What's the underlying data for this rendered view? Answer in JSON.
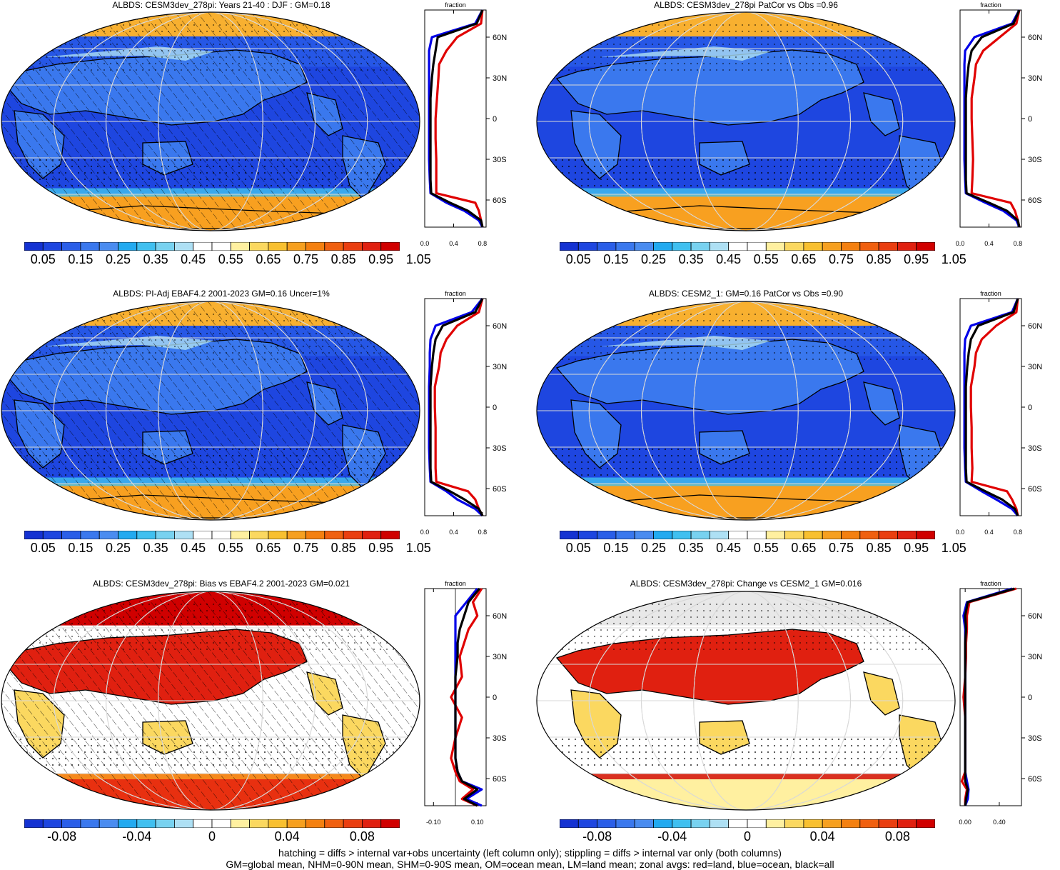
{
  "panels": [
    {
      "title": "ALBDS: CESM3dev_278pi: Years 21-40 : DJF : GM=0.18",
      "kind": "abs",
      "hatch": true
    },
    {
      "title": "ALBDS: CESM3dev_278pi PatCor vs Obs =0.96",
      "kind": "abs",
      "hatch": false
    },
    {
      "title": "ALBDS: PI-Adj EBAF4.2 2001-2023 GM=0.16 Uncer=1%",
      "kind": "abs",
      "hatch": true
    },
    {
      "title": "ALBDS: CESM2_1: GM=0.16 PatCor vs Obs =0.90",
      "kind": "abs",
      "hatch": false
    },
    {
      "title": "ALBDS: CESM3dev_278pi: Bias vs EBAF4.2 2001-2023 GM=0.021",
      "kind": "diff",
      "hatch": true
    },
    {
      "title": "ALBDS: CESM3dev_278pi: Change vs CESM2_1 GM=0.016",
      "kind": "diff",
      "hatch": false
    }
  ],
  "lat_labels": [
    "60N",
    "30N",
    "0",
    "30S",
    "60S"
  ],
  "zonal_title": "fraction",
  "zonal_ticks_abs": [
    "0.0",
    "0.4",
    "0.8"
  ],
  "zonal_ticks_bias": [
    "-0.10",
    "0.10"
  ],
  "zonal_ticks_change": [
    "0.00",
    "0.40"
  ],
  "colorbar_abs_labels": [
    "0.05",
    "0.15",
    "0.25",
    "0.35",
    "0.45",
    "0.55",
    "0.65",
    "0.75",
    "0.85",
    "0.95",
    "1.05"
  ],
  "colorbar_diff_labels": [
    "-0.08",
    "-0.04",
    "0",
    "0.04",
    "0.08"
  ],
  "colorbar_colors": [
    "#1432d2",
    "#1e46e0",
    "#2a5ee8",
    "#3a78ee",
    "#4a8cf0",
    "#22aaf0",
    "#40c0f0",
    "#78d2f0",
    "#aee0f4",
    "#ffffff",
    "#ffffff",
    "#fff0a0",
    "#fbd860",
    "#f8c030",
    "#f6a020",
    "#f48010",
    "#f06010",
    "#ea3e10",
    "#e02010",
    "#d00000"
  ],
  "footer": {
    "line1": "hatching = diffs > internal var+obs uncertainty (left column only); stippling = diffs > internal var only (both columns)",
    "line2": "GM=global mean, NHM=0-90N mean, SHM=0-90S mean, OM=ocean mean, LM=land mean; zonal avgs: red=land, blue=ocean, black=all"
  },
  "chart_data": [
    {
      "type": "heatmap",
      "title": "ALBDS: CESM3dev_278pi: Years 21-40 : DJF : GM=0.18",
      "projection": "Robinson",
      "variable": "ALBDS",
      "units": "fraction",
      "global_mean": 0.18,
      "zonal_avg": {
        "xlim": [
          0,
          0.85
        ],
        "lat": [
          80,
          70,
          60,
          50,
          40,
          30,
          15,
          0,
          -15,
          -30,
          -45,
          -55,
          -62,
          -68,
          -75,
          -80
        ],
        "land": [
          0.8,
          0.78,
          0.45,
          0.3,
          0.2,
          0.19,
          0.17,
          0.15,
          0.15,
          0.16,
          0.16,
          0.16,
          0.7,
          0.75,
          0.78,
          0.8
        ],
        "ocean": [
          0.8,
          0.7,
          0.1,
          0.06,
          0.06,
          0.06,
          0.06,
          0.06,
          0.06,
          0.06,
          0.07,
          0.08,
          0.3,
          0.55,
          0.75,
          0.8
        ],
        "all": [
          0.8,
          0.72,
          0.18,
          0.15,
          0.12,
          0.1,
          0.08,
          0.08,
          0.08,
          0.08,
          0.08,
          0.09,
          0.35,
          0.6,
          0.78,
          0.8
        ]
      }
    },
    {
      "type": "heatmap",
      "title": "ALBDS: CESM3dev_278pi PatCor vs Obs =0.96",
      "projection": "Robinson",
      "variable": "ALBDS",
      "pattern_correlation": 0.96,
      "zonal_avg": {
        "xlim": [
          0,
          0.85
        ],
        "lat": [
          80,
          70,
          60,
          50,
          40,
          30,
          15,
          0,
          -15,
          -30,
          -45,
          -55,
          -62,
          -68,
          -75,
          -80
        ],
        "land": [
          0.82,
          0.78,
          0.55,
          0.32,
          0.22,
          0.2,
          0.16,
          0.16,
          0.17,
          0.18,
          0.17,
          0.16,
          0.7,
          0.76,
          0.8,
          0.82
        ],
        "ocean": [
          0.82,
          0.72,
          0.2,
          0.07,
          0.06,
          0.06,
          0.06,
          0.06,
          0.06,
          0.06,
          0.07,
          0.08,
          0.35,
          0.6,
          0.78,
          0.82
        ],
        "all": [
          0.82,
          0.74,
          0.3,
          0.16,
          0.12,
          0.1,
          0.08,
          0.08,
          0.08,
          0.08,
          0.08,
          0.09,
          0.4,
          0.65,
          0.8,
          0.82
        ]
      }
    },
    {
      "type": "heatmap",
      "title": "ALBDS: PI-Adj EBAF4.2 2001-2023 GM=0.16 Uncer=1%",
      "projection": "Robinson",
      "variable": "ALBDS",
      "global_mean": 0.16,
      "uncertainty_percent": 1,
      "zonal_avg": {
        "xlim": [
          0,
          0.85
        ],
        "lat": [
          80,
          70,
          60,
          50,
          40,
          30,
          15,
          0,
          -15,
          -30,
          -45,
          -55,
          -62,
          -68,
          -75,
          -80
        ],
        "land": [
          0.8,
          0.75,
          0.45,
          0.3,
          0.22,
          0.2,
          0.14,
          0.14,
          0.15,
          0.15,
          0.15,
          0.16,
          0.6,
          0.7,
          0.75,
          0.8
        ],
        "ocean": [
          0.8,
          0.65,
          0.15,
          0.08,
          0.07,
          0.07,
          0.06,
          0.06,
          0.06,
          0.06,
          0.07,
          0.08,
          0.3,
          0.45,
          0.7,
          0.8
        ],
        "all": [
          0.8,
          0.7,
          0.25,
          0.15,
          0.12,
          0.1,
          0.08,
          0.08,
          0.08,
          0.08,
          0.08,
          0.09,
          0.35,
          0.55,
          0.75,
          0.8
        ]
      }
    },
    {
      "type": "heatmap",
      "title": "ALBDS: CESM2_1: GM=0.16 PatCor vs Obs =0.90",
      "projection": "Robinson",
      "variable": "ALBDS",
      "global_mean": 0.16,
      "pattern_correlation": 0.9,
      "zonal_avg": {
        "xlim": [
          0,
          0.85
        ],
        "lat": [
          80,
          70,
          60,
          50,
          40,
          30,
          15,
          0,
          -15,
          -30,
          -45,
          -55,
          -62,
          -68,
          -75,
          -80
        ],
        "land": [
          0.8,
          0.78,
          0.5,
          0.3,
          0.22,
          0.2,
          0.15,
          0.15,
          0.16,
          0.16,
          0.17,
          0.16,
          0.65,
          0.72,
          0.78,
          0.8
        ],
        "ocean": [
          0.8,
          0.72,
          0.15,
          0.07,
          0.06,
          0.06,
          0.06,
          0.06,
          0.06,
          0.06,
          0.07,
          0.08,
          0.3,
          0.5,
          0.72,
          0.8
        ],
        "all": [
          0.8,
          0.74,
          0.25,
          0.15,
          0.12,
          0.1,
          0.08,
          0.08,
          0.08,
          0.08,
          0.08,
          0.09,
          0.35,
          0.58,
          0.76,
          0.8
        ]
      }
    },
    {
      "type": "heatmap",
      "title": "ALBDS: CESM3dev_278pi: Bias vs EBAF4.2 2001-2023 GM=0.021",
      "projection": "Robinson",
      "variable": "ALBDS",
      "global_mean": 0.021,
      "zonal_avg": {
        "xlim": [
          -0.14,
          0.14
        ],
        "lat": [
          80,
          70,
          60,
          50,
          40,
          30,
          15,
          0,
          -15,
          -30,
          -45,
          -55,
          -62,
          -68,
          -75,
          -80
        ],
        "land": [
          0.12,
          0.08,
          0.1,
          0.06,
          0.04,
          0.02,
          0.03,
          -0.02,
          0.03,
          0.0,
          -0.02,
          0.0,
          0.02,
          0.08,
          0.03,
          0.1
        ],
        "ocean": [
          0.1,
          0.05,
          0.0,
          0.0,
          0.0,
          0.0,
          0.0,
          0.0,
          0.0,
          0.0,
          0.0,
          0.01,
          0.03,
          0.12,
          0.05,
          0.12
        ],
        "all": [
          0.11,
          0.06,
          0.04,
          0.02,
          0.01,
          0.01,
          0.0,
          0.0,
          0.0,
          0.0,
          0.0,
          0.01,
          0.03,
          0.1,
          0.04,
          0.1
        ]
      }
    },
    {
      "type": "heatmap",
      "title": "ALBDS: CESM3dev_278pi: Change vs CESM2_1 GM=0.016",
      "projection": "Robinson",
      "variable": "ALBDS",
      "global_mean": 0.016,
      "zonal_avg": {
        "xlim": [
          -0.06,
          0.66
        ],
        "lat": [
          80,
          70,
          60,
          50,
          40,
          30,
          15,
          0,
          -15,
          -30,
          -45,
          -55,
          -62,
          -68,
          -75,
          -80
        ],
        "land": [
          0.6,
          0.05,
          0.02,
          0.02,
          0.01,
          0.01,
          0.0,
          -0.02,
          0.0,
          0.0,
          0.0,
          0.0,
          -0.04,
          0.02,
          0.0,
          0.0
        ],
        "ocean": [
          0.55,
          0.02,
          -0.02,
          0.0,
          0.0,
          0.0,
          0.0,
          0.0,
          0.0,
          0.0,
          0.0,
          0.0,
          0.02,
          0.04,
          0.03,
          0.0
        ],
        "all": [
          0.58,
          0.03,
          0.0,
          0.01,
          0.0,
          0.0,
          0.0,
          0.0,
          0.0,
          0.0,
          0.0,
          0.0,
          0.0,
          0.03,
          0.01,
          0.0
        ]
      }
    }
  ]
}
